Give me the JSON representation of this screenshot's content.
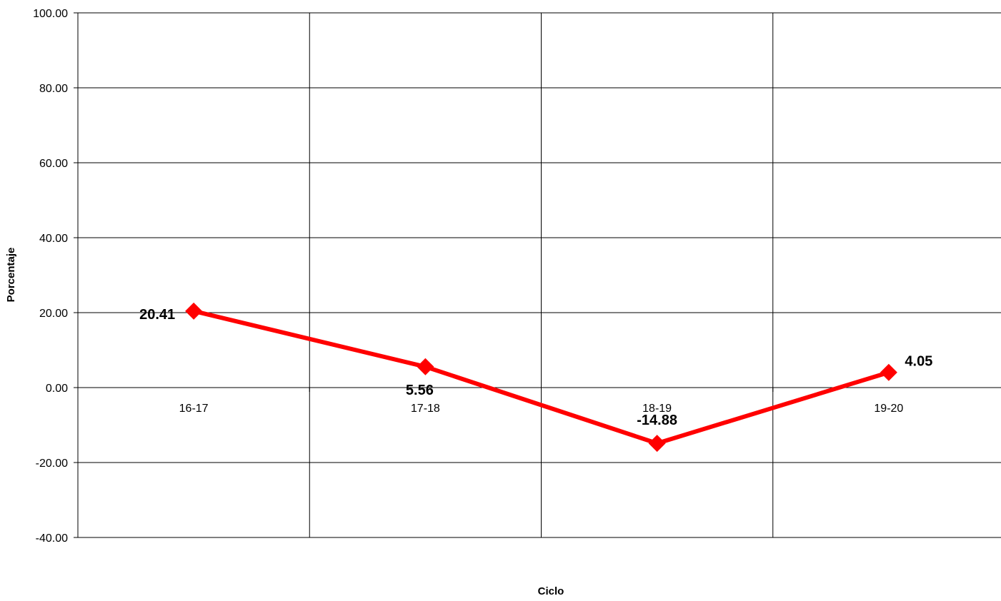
{
  "chart_data": {
    "type": "line",
    "title": "",
    "xlabel": "Ciclo",
    "ylabel": "Porcentaje",
    "categories": [
      "16-17",
      "17-18",
      "18-19",
      "19-20"
    ],
    "series": [
      {
        "values": [
          20.41,
          5.56,
          -14.88,
          4.05
        ],
        "data_labels": [
          "20.41",
          "5.56",
          "-14.88",
          "4.05"
        ],
        "color": "#ff0000",
        "marker": "diamond"
      }
    ],
    "ylim": [
      -40,
      100
    ],
    "yticks": [
      100,
      80,
      60,
      40,
      20,
      0,
      -20,
      -40
    ],
    "ytick_labels": [
      "100.00",
      "80.00",
      "60.00",
      "40.00",
      "20.00",
      "0.00",
      "-20.00",
      "-40.00"
    ],
    "grid": true,
    "legend": "none"
  }
}
